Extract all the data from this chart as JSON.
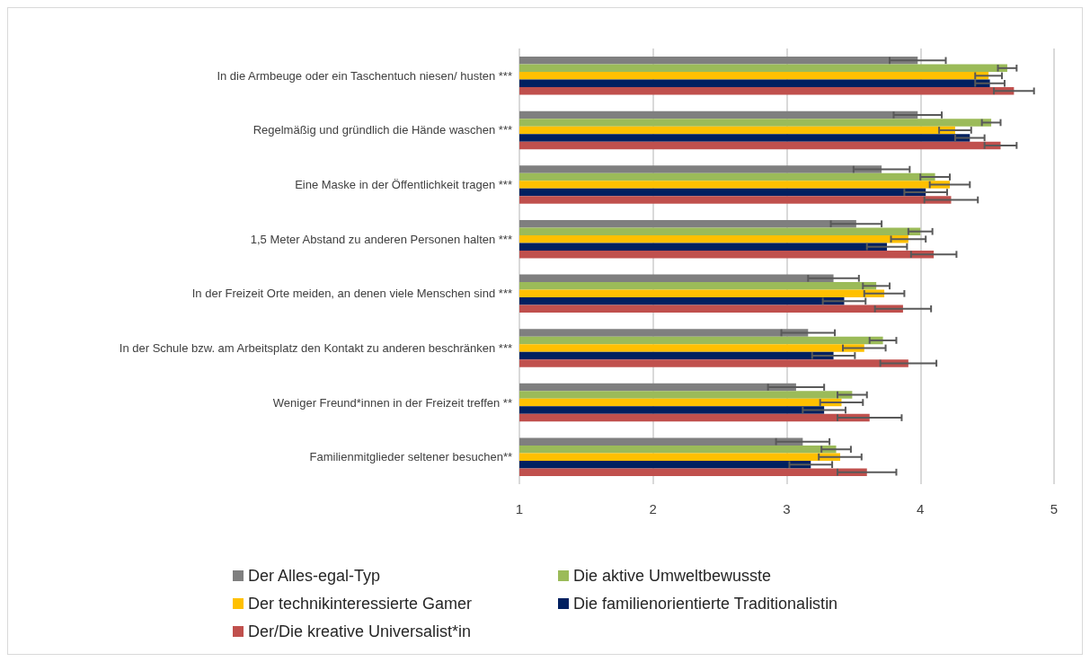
{
  "chart_data": {
    "type": "bar",
    "orientation": "horizontal",
    "categories": [
      "In die Armbeuge oder ein Taschentuch niesen/ husten ***",
      "Regelmäßig und gründlich die Hände waschen ***",
      "Eine Maske in der Öffentlichkeit tragen ***",
      "1,5 Meter Abstand zu anderen Personen halten ***",
      "In der Freizeit Orte meiden, an denen viele Menschen sind ***",
      "In der Schule bzw. am Arbeitsplatz den Kontakt zu anderen beschränken ***",
      "Weniger Freund*innen in der Freizeit treffen **",
      "Familienmitglieder seltener besuchen**"
    ],
    "series": [
      {
        "name": "Der Alles-egal-Typ",
        "color": "#7f7f7f",
        "values": [
          3.98,
          3.98,
          3.71,
          3.52,
          3.35,
          3.16,
          3.07,
          3.12
        ],
        "errors": [
          0.21,
          0.18,
          0.21,
          0.19,
          0.19,
          0.2,
          0.21,
          0.2
        ]
      },
      {
        "name": "Die aktive Umweltbewusste",
        "color": "#9bbb59",
        "values": [
          4.65,
          4.53,
          4.11,
          4.0,
          3.67,
          3.72,
          3.49,
          3.37
        ],
        "errors": [
          0.07,
          0.07,
          0.11,
          0.09,
          0.1,
          0.1,
          0.11,
          0.11
        ]
      },
      {
        "name": "Der technikinteressierte Gamer",
        "color": "#ffc000",
        "values": [
          4.51,
          4.26,
          4.22,
          3.91,
          3.73,
          3.58,
          3.41,
          3.4
        ],
        "errors": [
          0.1,
          0.12,
          0.15,
          0.13,
          0.15,
          0.16,
          0.16,
          0.16
        ]
      },
      {
        "name": "Die familienorientierte Traditionalistin",
        "color": "#002060",
        "values": [
          4.52,
          4.37,
          4.04,
          3.75,
          3.43,
          3.35,
          3.28,
          3.18
        ],
        "errors": [
          0.11,
          0.11,
          0.16,
          0.15,
          0.16,
          0.16,
          0.16,
          0.16
        ]
      },
      {
        "name": "Der/Die kreative Universalist*in",
        "color": "#c0504d",
        "values": [
          4.7,
          4.6,
          4.23,
          4.1,
          3.87,
          3.91,
          3.62,
          3.6
        ],
        "errors": [
          0.15,
          0.12,
          0.2,
          0.17,
          0.21,
          0.21,
          0.24,
          0.22
        ]
      }
    ],
    "xlim": [
      1,
      5
    ],
    "xticks": [
      1,
      2,
      3,
      4,
      5
    ],
    "grid": "x",
    "legend": "bottom"
  }
}
